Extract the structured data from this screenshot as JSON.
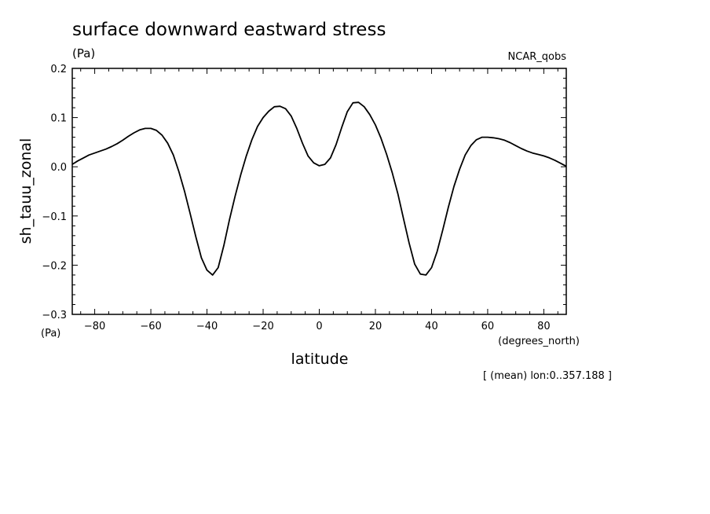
{
  "chart_data": {
    "type": "line",
    "title": "surface downward eastward stress",
    "units_label": "(Pa)",
    "source_label": "NCAR_qobs",
    "ylabel": "sh_tauu_zonal",
    "y_units": "(Pa)",
    "xlabel": "latitude",
    "x_units": "(degrees_north)",
    "footnote": "[ (mean) lon:0..357.188 ]",
    "xlim": [
      -88,
      88
    ],
    "ylim": [
      -0.3,
      0.2
    ],
    "x_ticks": [
      -80,
      -60,
      -40,
      -20,
      0,
      20,
      40,
      60,
      80
    ],
    "x_tick_labels": [
      "−80",
      "−60",
      "−40",
      "−20",
      "0",
      "20",
      "40",
      "60",
      "80"
    ],
    "y_ticks": [
      -0.3,
      -0.2,
      -0.1,
      0.0,
      0.1,
      0.2
    ],
    "y_tick_labels": [
      "−0.3",
      "−0.2",
      "−0.1",
      "0.0",
      "0.1",
      "0.2"
    ],
    "grid": false,
    "series": [
      {
        "x": [
          -88,
          -86,
          -84,
          -82,
          -80,
          -78,
          -76,
          -74,
          -72,
          -70,
          -68,
          -66,
          -64,
          -62,
          -60,
          -58,
          -56,
          -54,
          -52,
          -50,
          -48,
          -46,
          -44,
          -42,
          -40,
          -38,
          -36,
          -34,
          -32,
          -30,
          -28,
          -26,
          -24,
          -22,
          -20,
          -18,
          -16,
          -14,
          -12,
          -10,
          -8,
          -6,
          -4,
          -2,
          0,
          2,
          4,
          6,
          8,
          10,
          12,
          14,
          16,
          18,
          20,
          22,
          24,
          26,
          28,
          30,
          32,
          34,
          36,
          38,
          40,
          42,
          44,
          46,
          48,
          50,
          52,
          54,
          56,
          58,
          60,
          62,
          64,
          66,
          68,
          70,
          72,
          74,
          76,
          78,
          80,
          82,
          84,
          86,
          88
        ],
        "values": [
          0.005,
          0.012,
          0.018,
          0.024,
          0.028,
          0.032,
          0.036,
          0.041,
          0.047,
          0.054,
          0.062,
          0.069,
          0.075,
          0.078,
          0.078,
          0.074,
          0.064,
          0.048,
          0.024,
          -0.01,
          -0.05,
          -0.095,
          -0.142,
          -0.185,
          -0.21,
          -0.22,
          -0.205,
          -0.16,
          -0.108,
          -0.06,
          -0.017,
          0.022,
          0.055,
          0.082,
          0.1,
          0.113,
          0.122,
          0.123,
          0.118,
          0.103,
          0.078,
          0.048,
          0.022,
          0.008,
          0.002,
          0.005,
          0.018,
          0.045,
          0.08,
          0.112,
          0.13,
          0.131,
          0.122,
          0.106,
          0.085,
          0.058,
          0.025,
          -0.012,
          -0.055,
          -0.105,
          -0.155,
          -0.198,
          -0.218,
          -0.22,
          -0.205,
          -0.172,
          -0.128,
          -0.082,
          -0.04,
          -0.005,
          0.024,
          0.043,
          0.055,
          0.06,
          0.06,
          0.059,
          0.057,
          0.054,
          0.049,
          0.043,
          0.037,
          0.032,
          0.028,
          0.025,
          0.022,
          0.018,
          0.013,
          0.007,
          0.001
        ]
      }
    ]
  }
}
